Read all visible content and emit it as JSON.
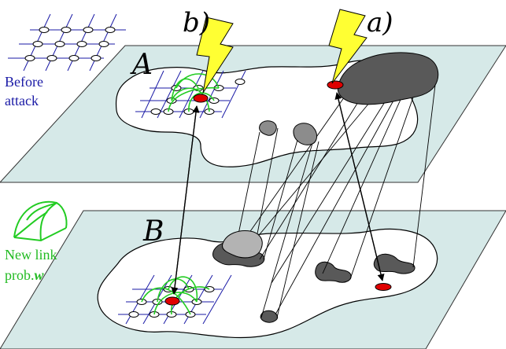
{
  "labels": {
    "layer_a": "A",
    "layer_b": "B",
    "attack_a": "a)",
    "attack_b": "b)",
    "legend_before_line1": "Before",
    "legend_before_line2": "attack",
    "legend_newlink_line1": "New link",
    "legend_newlink_prefix": "prob.",
    "legend_newlink_symbol": "w"
  },
  "colors": {
    "plane_fill": "#d6e9e8",
    "region_fill": "#ffffff",
    "cluster_dark": "#595959",
    "cluster_mid": "#8c8c8c",
    "cluster_light": "#b3b3b3",
    "lattice_blue": "#1a1aa6",
    "new_link_green": "#22cc22",
    "failed_node_red": "#e00000",
    "lightning_yellow": "#ffff33",
    "legend_blue_text": "#1a1aa6",
    "legend_green_text": "#22bb22"
  },
  "icons": {
    "lightning": "lightning-bolt-icon",
    "lattice": "lattice-network-icon",
    "new_link": "new-link-dome-icon"
  }
}
